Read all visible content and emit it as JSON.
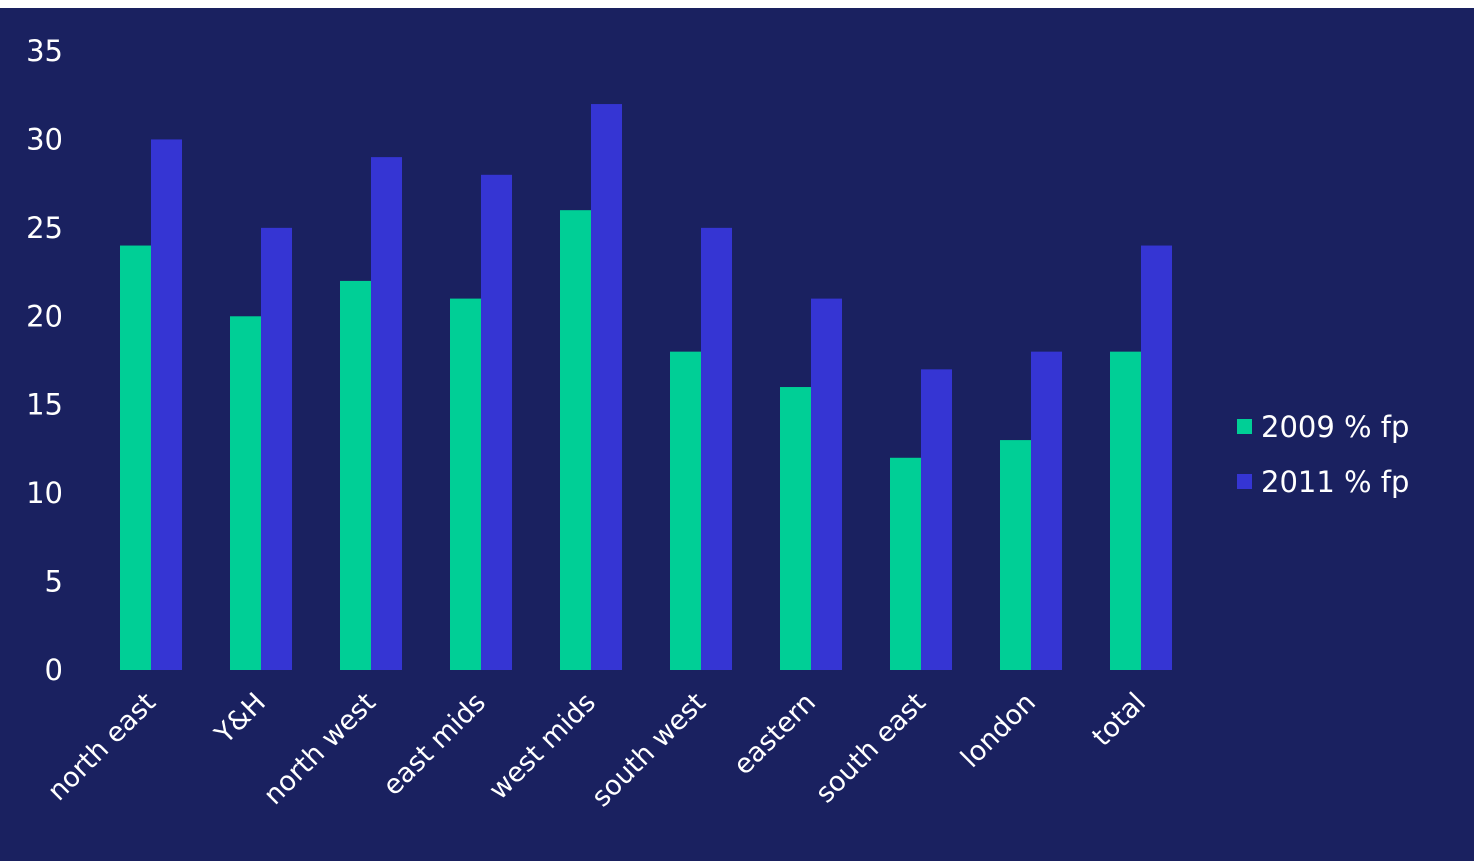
{
  "colors": {
    "background": "#1a2160",
    "series_2009": "#00cf96",
    "series_2011": "#3535d3",
    "text": "#ffffff"
  },
  "chart_data": {
    "type": "bar",
    "title": "",
    "xlabel": "",
    "ylabel": "",
    "ylim": [
      0,
      35
    ],
    "yticks": [
      0,
      5,
      10,
      15,
      20,
      25,
      30,
      35
    ],
    "grid": false,
    "legend_position": "right",
    "categories": [
      "north east",
      "Y&H",
      "north west",
      "east mids",
      "west mids",
      "south west",
      "eastern",
      "south east",
      "london",
      "total"
    ],
    "series": [
      {
        "name": "2009 % fp",
        "color": "#00cf96",
        "values": [
          24,
          20,
          22,
          21,
          26,
          18,
          16,
          12,
          13,
          18
        ]
      },
      {
        "name": "2011 % fp",
        "color": "#3535d3",
        "values": [
          30,
          25,
          29,
          28,
          32,
          25,
          21,
          17,
          18,
          24
        ]
      }
    ]
  }
}
